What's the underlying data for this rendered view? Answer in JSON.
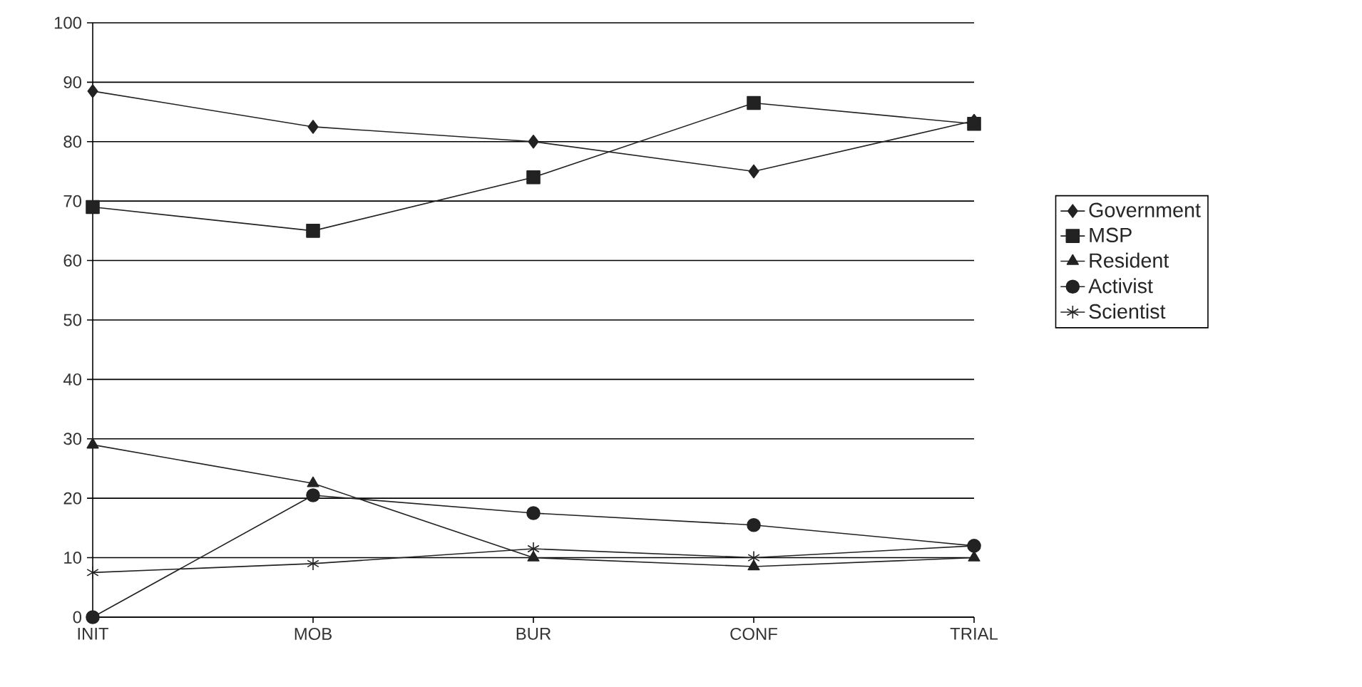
{
  "chart_data": {
    "type": "line",
    "categories": [
      "INIT",
      "MOB",
      "BUR",
      "CONF",
      "TRIAL"
    ],
    "series": [
      {
        "name": "Government",
        "color": "#222222",
        "marker": "diamond",
        "values": [
          88.5,
          82.5,
          80,
          75,
          83.5
        ]
      },
      {
        "name": "MSP",
        "color": "#222222",
        "marker": "square",
        "values": [
          69,
          65,
          74,
          86.5,
          83
        ]
      },
      {
        "name": "Resident",
        "color": "#222222",
        "marker": "triangle",
        "values": [
          29,
          22.5,
          10,
          8.5,
          10
        ]
      },
      {
        "name": "Activist",
        "color": "#222222",
        "marker": "circle",
        "values": [
          0,
          20.5,
          17.5,
          15.5,
          12
        ]
      },
      {
        "name": "Scientist",
        "color": "#222222",
        "marker": "cross",
        "values": [
          7.5,
          9,
          11.5,
          10,
          12
        ]
      }
    ],
    "ylim": [
      0,
      100
    ],
    "yticks": [
      0,
      10,
      20,
      30,
      40,
      50,
      60,
      70,
      80,
      90,
      100
    ],
    "grid": "y",
    "legend": "right",
    "line_style": "solid"
  }
}
